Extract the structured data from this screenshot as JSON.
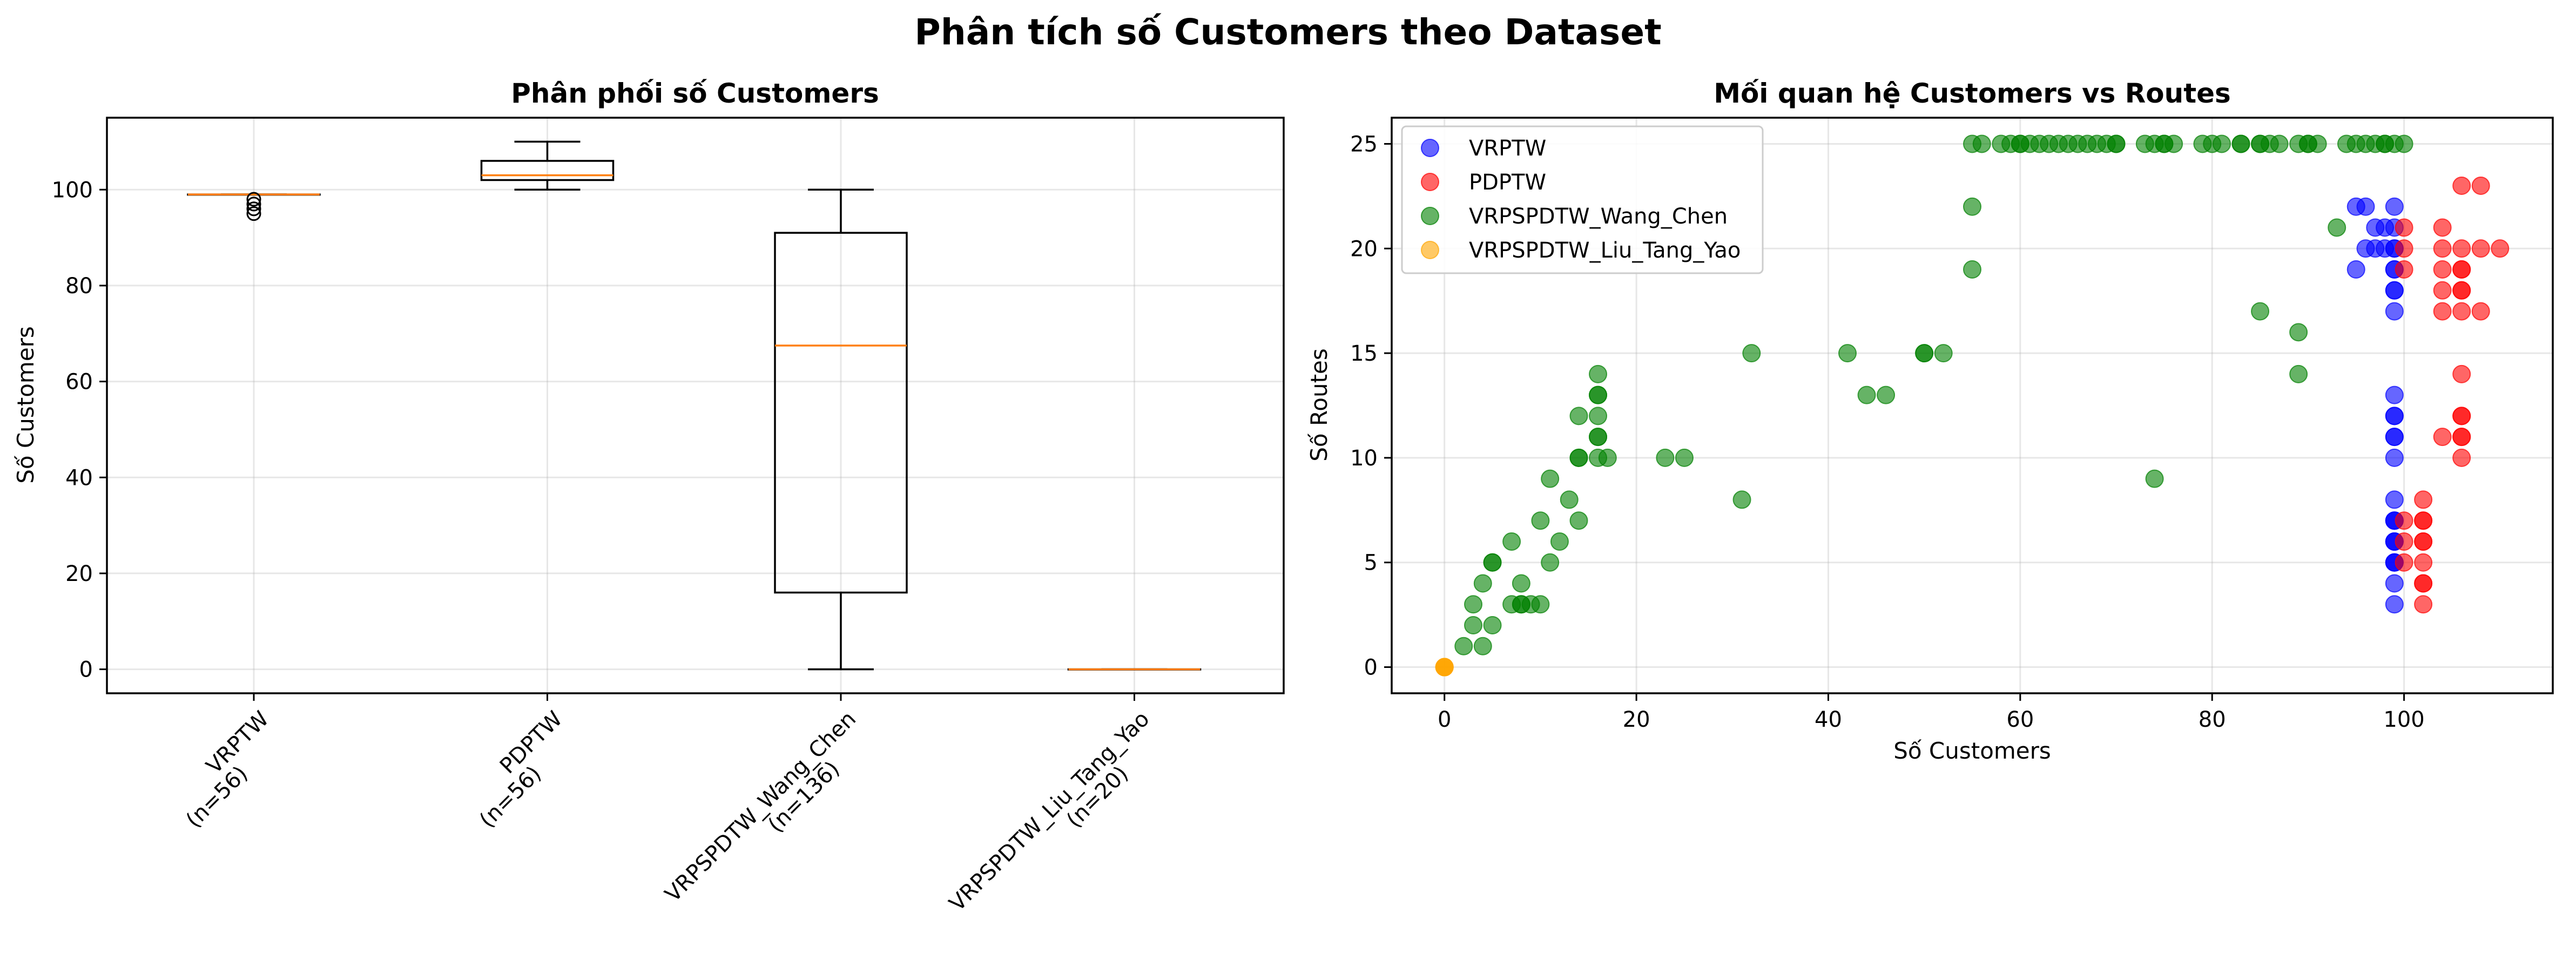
{
  "figure": {
    "title": "Phân tích số Customers theo Dataset"
  },
  "chart_data": [
    {
      "type": "box",
      "title": "Phân phối số Customers",
      "xlabel": "",
      "ylabel": "Số Customers",
      "ylim": [
        -5,
        115
      ],
      "yticks": [
        0,
        20,
        40,
        60,
        80,
        100
      ],
      "grid": true,
      "colors": {
        "box": "#000000",
        "median": "#ff7f0e"
      },
      "boxes": [
        {
          "label": "VRPTW\n(n=56)",
          "min": 99,
          "q1": 99,
          "median": 99,
          "q3": 99,
          "max": 99,
          "outliers": [
            95,
            96,
            97,
            98
          ]
        },
        {
          "label": "PDPTW\n(n=56)",
          "min": 100,
          "q1": 102,
          "median": 103,
          "q3": 106,
          "max": 110,
          "outliers": []
        },
        {
          "label": "VRPSPDTW_Wang_Chen\n(n=136)",
          "min": 0,
          "q1": 16,
          "median": 67.5,
          "q3": 91,
          "max": 100,
          "outliers": []
        },
        {
          "label": "VRPSPDTW_Liu_Tang_Yao\n(n=20)",
          "min": 0,
          "q1": 0,
          "median": 0,
          "q3": 0,
          "max": 0,
          "outliers": []
        }
      ]
    },
    {
      "type": "scatter",
      "title": "Mối quan hệ Customers vs Routes",
      "xlabel": "Số Customers",
      "ylabel": "Số Routes",
      "xlim": [
        -5.5,
        115.5
      ],
      "ylim": [
        -1.25,
        26.25
      ],
      "xticks": [
        0,
        20,
        40,
        60,
        80,
        100
      ],
      "yticks": [
        0,
        5,
        10,
        15,
        20,
        25
      ],
      "grid": true,
      "legend": "upper-left",
      "series": [
        {
          "name": "VRPTW",
          "color": "#0000ff",
          "alpha": 0.6,
          "points": [
            [
              99,
              3
            ],
            [
              99,
              4
            ],
            [
              99,
              5
            ],
            [
              99,
              5
            ],
            [
              99,
              6
            ],
            [
              99,
              6
            ],
            [
              99,
              7
            ],
            [
              99,
              7
            ],
            [
              99,
              8
            ],
            [
              99,
              10
            ],
            [
              99,
              11
            ],
            [
              99,
              12
            ],
            [
              99,
              13
            ],
            [
              99,
              17
            ],
            [
              99,
              18
            ],
            [
              99,
              19
            ],
            [
              99,
              20
            ],
            [
              99,
              21
            ],
            [
              99,
              22
            ],
            [
              95,
              19
            ],
            [
              95,
              22
            ],
            [
              96,
              20
            ],
            [
              96,
              22
            ],
            [
              97,
              20
            ],
            [
              97,
              21
            ],
            [
              98,
              20
            ],
            [
              98,
              21
            ],
            [
              99,
              20
            ],
            [
              99,
              18
            ],
            [
              99,
              19
            ],
            [
              99,
              7
            ],
            [
              99,
              6
            ],
            [
              99,
              5
            ],
            [
              99,
              11
            ],
            [
              99,
              12
            ]
          ]
        },
        {
          "name": "PDPTW",
          "color": "#ff0000",
          "alpha": 0.6,
          "points": [
            [
              100,
              5
            ],
            [
              100,
              6
            ],
            [
              100,
              7
            ],
            [
              100,
              19
            ],
            [
              100,
              20
            ],
            [
              100,
              21
            ],
            [
              102,
              3
            ],
            [
              102,
              4
            ],
            [
              102,
              5
            ],
            [
              102,
              6
            ],
            [
              102,
              7
            ],
            [
              102,
              8
            ],
            [
              104,
              11
            ],
            [
              104,
              17
            ],
            [
              104,
              18
            ],
            [
              104,
              19
            ],
            [
              104,
              20
            ],
            [
              104,
              21
            ],
            [
              106,
              10
            ],
            [
              106,
              11
            ],
            [
              106,
              12
            ],
            [
              106,
              14
            ],
            [
              106,
              17
            ],
            [
              106,
              18
            ],
            [
              106,
              19
            ],
            [
              106,
              20
            ],
            [
              106,
              23
            ],
            [
              108,
              17
            ],
            [
              108,
              20
            ],
            [
              108,
              23
            ],
            [
              110,
              20
            ],
            [
              102,
              6
            ],
            [
              102,
              7
            ],
            [
              102,
              4
            ],
            [
              106,
              11
            ],
            [
              106,
              12
            ],
            [
              106,
              18
            ],
            [
              106,
              19
            ]
          ]
        },
        {
          "name": "VRPSPDTW_Wang_Chen",
          "color": "#008000",
          "alpha": 0.6,
          "points": [
            [
              2,
              1
            ],
            [
              3,
              2
            ],
            [
              3,
              3
            ],
            [
              4,
              1
            ],
            [
              4,
              4
            ],
            [
              5,
              2
            ],
            [
              5,
              5
            ],
            [
              5,
              5
            ],
            [
              7,
              3
            ],
            [
              7,
              6
            ],
            [
              8,
              3
            ],
            [
              8,
              3
            ],
            [
              8,
              4
            ],
            [
              9,
              3
            ],
            [
              10,
              3
            ],
            [
              10,
              7
            ],
            [
              11,
              5
            ],
            [
              11,
              9
            ],
            [
              12,
              6
            ],
            [
              13,
              8
            ],
            [
              14,
              7
            ],
            [
              14,
              10
            ],
            [
              14,
              12
            ],
            [
              16,
              10
            ],
            [
              16,
              11
            ],
            [
              16,
              12
            ],
            [
              16,
              13
            ],
            [
              16,
              14
            ],
            [
              17,
              10
            ],
            [
              14,
              10
            ],
            [
              16,
              11
            ],
            [
              16,
              13
            ],
            [
              23,
              10
            ],
            [
              25,
              10
            ],
            [
              31,
              8
            ],
            [
              32,
              15
            ],
            [
              42,
              15
            ],
            [
              44,
              13
            ],
            [
              46,
              13
            ],
            [
              50,
              15
            ],
            [
              50,
              15
            ],
            [
              52,
              15
            ],
            [
              55,
              19
            ],
            [
              55,
              22
            ],
            [
              55,
              25
            ],
            [
              56,
              25
            ],
            [
              58,
              25
            ],
            [
              59,
              25
            ],
            [
              60,
              25
            ],
            [
              61,
              25
            ],
            [
              62,
              25
            ],
            [
              63,
              25
            ],
            [
              64,
              25
            ],
            [
              66,
              25
            ],
            [
              67,
              25
            ],
            [
              68,
              25
            ],
            [
              69,
              25
            ],
            [
              70,
              25
            ],
            [
              73,
              25
            ],
            [
              74,
              25
            ],
            [
              75,
              25
            ],
            [
              76,
              25
            ],
            [
              79,
              25
            ],
            [
              80,
              25
            ],
            [
              81,
              25
            ],
            [
              83,
              25
            ],
            [
              85,
              25
            ],
            [
              86,
              25
            ],
            [
              87,
              25
            ],
            [
              89,
              25
            ],
            [
              90,
              25
            ],
            [
              91,
              25
            ],
            [
              94,
              25
            ],
            [
              95,
              25
            ],
            [
              96,
              25
            ],
            [
              97,
              25
            ],
            [
              98,
              25
            ],
            [
              99,
              25
            ],
            [
              100,
              25
            ],
            [
              60,
              25
            ],
            [
              65,
              25
            ],
            [
              70,
              25
            ],
            [
              75,
              25
            ],
            [
              83,
              25
            ],
            [
              85,
              25
            ],
            [
              90,
              25
            ],
            [
              98,
              25
            ],
            [
              74,
              9
            ],
            [
              85,
              17
            ],
            [
              89,
              14
            ],
            [
              89,
              16
            ],
            [
              93,
              21
            ]
          ]
        },
        {
          "name": "VRPSPDTW_Liu_Tang_Yao",
          "color": "#ffa500",
          "alpha": 0.6,
          "points": [
            [
              0,
              0
            ],
            [
              0,
              0
            ],
            [
              0,
              0
            ],
            [
              0,
              0
            ]
          ]
        }
      ]
    }
  ]
}
